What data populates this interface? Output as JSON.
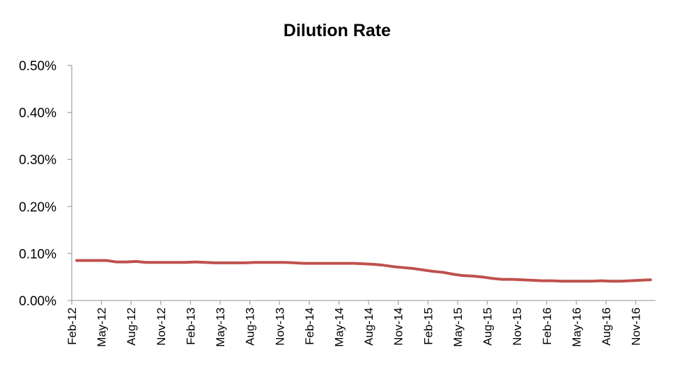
{
  "chart_data": {
    "type": "line",
    "title": "Dilution Rate",
    "xlabel": "",
    "ylabel": "",
    "ylim": [
      0,
      0.5
    ],
    "yticks": [
      0.0,
      0.1,
      0.2,
      0.3,
      0.4,
      0.5
    ],
    "ytick_labels": [
      "0.00%",
      "0.10%",
      "0.20%",
      "0.30%",
      "0.40%",
      "0.50%"
    ],
    "x_tick_labels": [
      "Feb-12",
      "May-12",
      "Aug-12",
      "Nov-12",
      "Feb-13",
      "May-13",
      "Aug-13",
      "Nov-13",
      "Feb-14",
      "May-14",
      "Aug-14",
      "Nov-14",
      "Feb-15",
      "May-15",
      "Aug-15",
      "Nov-15",
      "Feb-16",
      "May-16",
      "Aug-16",
      "Nov-16"
    ],
    "x_months": [
      "2012-02",
      "2012-03",
      "2012-04",
      "2012-05",
      "2012-06",
      "2012-07",
      "2012-08",
      "2012-09",
      "2012-10",
      "2012-11",
      "2012-12",
      "2013-01",
      "2013-02",
      "2013-03",
      "2013-04",
      "2013-05",
      "2013-06",
      "2013-07",
      "2013-08",
      "2013-09",
      "2013-10",
      "2013-11",
      "2013-12",
      "2014-01",
      "2014-02",
      "2014-03",
      "2014-04",
      "2014-05",
      "2014-06",
      "2014-07",
      "2014-08",
      "2014-09",
      "2014-10",
      "2014-11",
      "2014-12",
      "2015-01",
      "2015-02",
      "2015-03",
      "2015-04",
      "2015-05",
      "2015-06",
      "2015-07",
      "2015-08",
      "2015-09",
      "2015-10",
      "2015-11",
      "2015-12",
      "2016-01",
      "2016-02",
      "2016-03",
      "2016-04",
      "2016-05",
      "2016-06",
      "2016-07",
      "2016-08",
      "2016-09",
      "2016-10",
      "2016-11",
      "2016-12"
    ],
    "grid": false,
    "legend": "none",
    "series": [
      {
        "color": "#c0504d",
        "values": [
          0.085,
          0.085,
          0.085,
          0.085,
          0.082,
          0.082,
          0.083,
          0.081,
          0.081,
          0.081,
          0.081,
          0.081,
          0.082,
          0.081,
          0.08,
          0.08,
          0.08,
          0.08,
          0.081,
          0.081,
          0.081,
          0.081,
          0.08,
          0.079,
          0.079,
          0.079,
          0.079,
          0.079,
          0.079,
          0.078,
          0.077,
          0.075,
          0.072,
          0.07,
          0.068,
          0.065,
          0.062,
          0.06,
          0.056,
          0.053,
          0.052,
          0.05,
          0.047,
          0.045,
          0.045,
          0.044,
          0.043,
          0.042,
          0.042,
          0.041,
          0.041,
          0.041,
          0.041,
          0.042,
          0.041,
          0.041,
          0.042,
          0.043,
          0.044
        ]
      }
    ]
  }
}
